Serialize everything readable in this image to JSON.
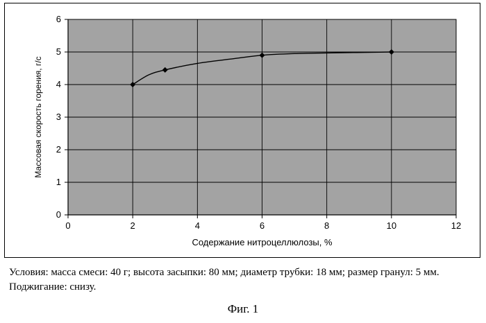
{
  "chart_data": {
    "type": "line",
    "xlabel": "Содержание нитроцеллюлозы, %",
    "ylabel": "Массовая скорость горения, г/с",
    "xlim": [
      0,
      12
    ],
    "ylim": [
      0,
      6
    ],
    "xticks": [
      0,
      2,
      4,
      6,
      8,
      10,
      12
    ],
    "yticks": [
      0,
      1,
      2,
      3,
      4,
      5,
      6
    ],
    "grid": true,
    "plot_background": "#a3a3a3",
    "line_color": "#000000",
    "series": [
      {
        "markers": [
          {
            "x": 2,
            "y": 4.0
          },
          {
            "x": 3,
            "y": 4.45
          },
          {
            "x": 6,
            "y": 4.9
          },
          {
            "x": 10,
            "y": 5.0
          }
        ],
        "curve": [
          {
            "x": 2,
            "y": 4.0
          },
          {
            "x": 2.5,
            "y": 4.3
          },
          {
            "x": 3,
            "y": 4.45
          },
          {
            "x": 4,
            "y": 4.65
          },
          {
            "x": 5,
            "y": 4.78
          },
          {
            "x": 6,
            "y": 4.9
          },
          {
            "x": 7,
            "y": 4.95
          },
          {
            "x": 8,
            "y": 4.97
          },
          {
            "x": 10,
            "y": 5.0
          }
        ]
      }
    ]
  },
  "caption": {
    "text": "Условия: масса смеси: 40 г; высота засыпки: 80 мм; диаметр трубки: 18 мм; размер гранул: 5 мм. Поджигание: снизу."
  },
  "figure_label": "Фиг. 1"
}
